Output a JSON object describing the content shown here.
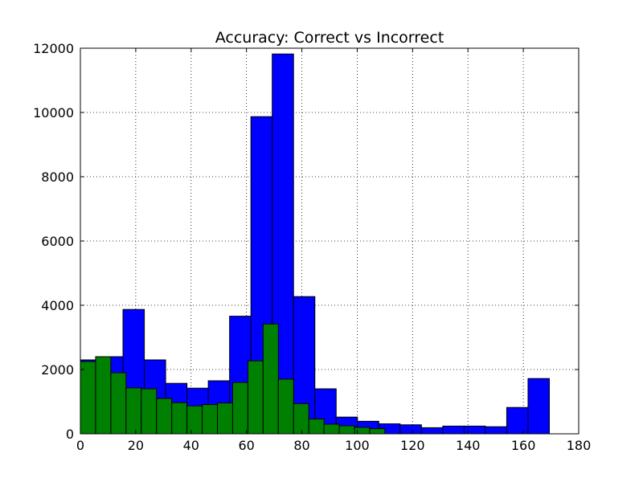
{
  "chart_data": {
    "type": "bar",
    "title": "Accuracy: Correct vs Incorrect",
    "xlabel": "",
    "ylabel": "",
    "xlim": [
      0,
      180
    ],
    "ylim": [
      0,
      12000
    ],
    "xticks": [
      0,
      20,
      40,
      60,
      80,
      100,
      120,
      140,
      160,
      180
    ],
    "yticks": [
      0,
      2000,
      4000,
      6000,
      8000,
      10000,
      12000
    ],
    "grid": true,
    "series": [
      {
        "color": "#0000ff",
        "bin_edges": [
          0,
          7.7,
          15.4,
          23.1,
          30.8,
          38.5,
          46.2,
          53.9,
          61.6,
          69.3,
          77,
          84.7,
          92.4,
          100.1,
          107.8,
          115.5,
          123.2,
          130.9,
          138.6,
          146.3,
          154,
          161.7
        ],
        "values": [
          2300,
          2400,
          3870,
          2300,
          1570,
          1420,
          1650,
          3660,
          9870,
          11820,
          4270,
          1400,
          520,
          390,
          310,
          280,
          190,
          240,
          240,
          220,
          820,
          1720
        ]
      },
      {
        "color": "#008000",
        "bin_edges": [
          0,
          5.5,
          11,
          16.5,
          22,
          27.5,
          33,
          38.5,
          44,
          49.5,
          55,
          60.5,
          66,
          71.5,
          77,
          82.5,
          88,
          93.5,
          99,
          104.5
        ],
        "values": [
          2250,
          2400,
          1900,
          1430,
          1400,
          1100,
          970,
          870,
          910,
          960,
          1600,
          2270,
          3420,
          1700,
          940,
          460,
          300,
          250,
          200,
          160
        ]
      }
    ]
  }
}
